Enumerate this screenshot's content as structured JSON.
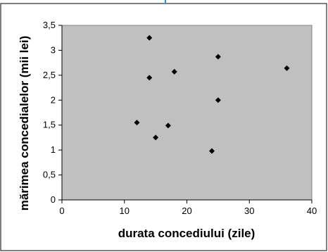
{
  "chart_data": {
    "type": "scatter",
    "title": "",
    "xlabel": "durata concediului (zile)",
    "ylabel": "mărimea concedialelor (mii lei)",
    "xlim": [
      0,
      40
    ],
    "ylim": [
      0,
      3.5
    ],
    "x_ticks": [
      "0",
      "10",
      "20",
      "30",
      "40"
    ],
    "y_ticks": [
      "0",
      "0,5",
      "1",
      "1,5",
      "2",
      "2,5",
      "3",
      "3,5"
    ],
    "grid": false,
    "legend": "none",
    "marker": "diamond",
    "colors": {
      "plot_area": "#c0c0c0",
      "marker": "#000000"
    },
    "points": [
      {
        "x": 14,
        "y": 3.25
      },
      {
        "x": 25,
        "y": 2.87
      },
      {
        "x": 36,
        "y": 2.64
      },
      {
        "x": 18,
        "y": 2.57
      },
      {
        "x": 14,
        "y": 2.45
      },
      {
        "x": 25,
        "y": 2.0
      },
      {
        "x": 12,
        "y": 1.55
      },
      {
        "x": 17,
        "y": 1.49
      },
      {
        "x": 15,
        "y": 1.25
      },
      {
        "x": 24,
        "y": 0.98
      }
    ]
  }
}
